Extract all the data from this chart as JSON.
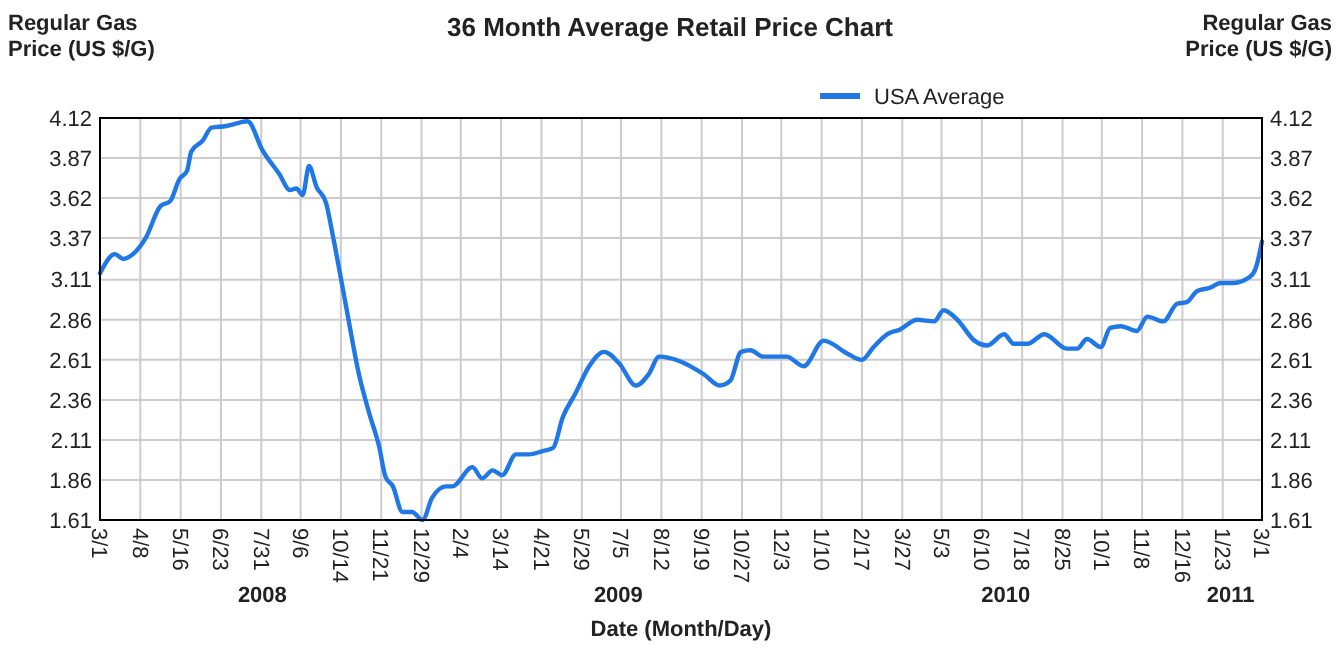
{
  "chart_data": {
    "type": "line",
    "title": "36 Month Average Retail Price Chart",
    "xlabel": "Date (Month/Day)",
    "ylabel": "Regular Gas Price (US $/G)",
    "y2label": "Regular Gas Price (US $/G)",
    "x": [
      "2008-03-01",
      "2008-03-15",
      "2008-03-23",
      "2008-04-01",
      "2008-04-13",
      "2008-04-27",
      "2008-05-06",
      "2008-05-15",
      "2008-05-22",
      "2008-05-26",
      "2008-06-06",
      "2008-06-14",
      "2008-06-28",
      "2008-07-10",
      "2008-07-18",
      "2008-08-01",
      "2008-08-17",
      "2008-08-27",
      "2008-09-02",
      "2008-09-08",
      "2008-09-14",
      "2008-09-21",
      "2008-09-30",
      "2008-10-06",
      "2008-10-19",
      "2008-10-31",
      "2008-11-10",
      "2008-11-19",
      "2008-11-25",
      "2008-12-02",
      "2008-12-11",
      "2008-12-20",
      "2008-12-30",
      "2009-01-08",
      "2009-01-21",
      "2009-01-27",
      "2009-02-15",
      "2009-02-24",
      "2009-03-06",
      "2009-03-15",
      "2009-03-28",
      "2009-04-09",
      "2009-04-22",
      "2009-05-02",
      "2009-05-11",
      "2009-05-23",
      "2009-06-05",
      "2009-06-19",
      "2009-07-03",
      "2009-07-19",
      "2009-07-31",
      "2009-08-10",
      "2009-08-30",
      "2009-09-21",
      "2009-10-06",
      "2009-10-16",
      "2009-10-26",
      "2009-11-04",
      "2009-11-16",
      "2009-12-08",
      "2009-12-24",
      "2010-01-12",
      "2010-02-03",
      "2010-02-17",
      "2010-02-28",
      "2010-03-13",
      "2010-03-25",
      "2010-04-10",
      "2010-04-26",
      "2010-05-05",
      "2010-05-18",
      "2010-06-03",
      "2010-06-15",
      "2010-07-01",
      "2010-07-10",
      "2010-07-23",
      "2010-08-08",
      "2010-08-29",
      "2010-09-08",
      "2010-09-17",
      "2010-09-30",
      "2010-10-09",
      "2010-10-19",
      "2010-11-03",
      "2010-11-13",
      "2010-11-28",
      "2010-12-11",
      "2010-12-20",
      "2010-12-30",
      "2011-01-11",
      "2011-01-21",
      "2011-02-02",
      "2011-02-18",
      "2011-02-23",
      "2011-03-01"
    ],
    "series": [
      {
        "name": "USA Average",
        "color": "#1f78e6",
        "values": [
          3.15,
          3.27,
          3.24,
          3.27,
          3.37,
          3.57,
          3.6,
          3.74,
          3.79,
          3.91,
          3.98,
          4.06,
          4.07,
          4.09,
          4.1,
          3.92,
          3.77,
          3.67,
          3.68,
          3.64,
          3.82,
          3.69,
          3.59,
          3.4,
          2.94,
          2.52,
          2.27,
          2.07,
          1.88,
          1.82,
          1.66,
          1.66,
          1.61,
          1.75,
          1.82,
          1.82,
          1.94,
          1.87,
          1.92,
          1.89,
          2.02,
          2.02,
          2.04,
          2.06,
          2.25,
          2.4,
          2.57,
          2.66,
          2.59,
          2.45,
          2.52,
          2.63,
          2.6,
          2.52,
          2.45,
          2.48,
          2.66,
          2.67,
          2.63,
          2.63,
          2.57,
          2.73,
          2.65,
          2.61,
          2.69,
          2.77,
          2.8,
          2.86,
          2.85,
          2.92,
          2.86,
          2.73,
          2.7,
          2.77,
          2.71,
          2.71,
          2.77,
          2.68,
          2.68,
          2.74,
          2.69,
          2.81,
          2.82,
          2.79,
          2.88,
          2.85,
          2.96,
          2.97,
          3.04,
          3.06,
          3.09,
          3.09,
          3.13,
          3.18,
          3.35
        ]
      }
    ],
    "xlim": [
      "2008-03-01",
      "2011-03-01"
    ],
    "xticks": [
      {
        "value": "2008-03-01",
        "label": "3/1"
      },
      {
        "value": "2008-04-08",
        "label": "4/8"
      },
      {
        "value": "2008-05-16",
        "label": "5/16"
      },
      {
        "value": "2008-06-23",
        "label": "6/23"
      },
      {
        "value": "2008-07-31",
        "label": "7/31"
      },
      {
        "value": "2008-09-06",
        "label": "9/6"
      },
      {
        "value": "2008-10-14",
        "label": "10/14"
      },
      {
        "value": "2008-11-21",
        "label": "11/21"
      },
      {
        "value": "2008-12-29",
        "label": "12/29"
      },
      {
        "value": "2009-02-04",
        "label": "2/4"
      },
      {
        "value": "2009-03-14",
        "label": "3/14"
      },
      {
        "value": "2009-04-21",
        "label": "4/21"
      },
      {
        "value": "2009-05-29",
        "label": "5/29"
      },
      {
        "value": "2009-07-05",
        "label": "7/5"
      },
      {
        "value": "2009-08-12",
        "label": "8/12"
      },
      {
        "value": "2009-09-19",
        "label": "9/19"
      },
      {
        "value": "2009-10-27",
        "label": "10/27"
      },
      {
        "value": "2009-12-03",
        "label": "12/3"
      },
      {
        "value": "2010-01-10",
        "label": "1/10"
      },
      {
        "value": "2010-02-17",
        "label": "2/17"
      },
      {
        "value": "2010-03-27",
        "label": "3/27"
      },
      {
        "value": "2010-05-03",
        "label": "5/3"
      },
      {
        "value": "2010-06-10",
        "label": "6/10"
      },
      {
        "value": "2010-07-18",
        "label": "7/18"
      },
      {
        "value": "2010-08-25",
        "label": "8/25"
      },
      {
        "value": "2010-10-01",
        "label": "10/1"
      },
      {
        "value": "2010-11-08",
        "label": "11/8"
      },
      {
        "value": "2010-12-16",
        "label": "12/16"
      },
      {
        "value": "2011-01-23",
        "label": "1/23"
      },
      {
        "value": "2011-03-01",
        "label": "3/1"
      }
    ],
    "ylim": [
      1.61,
      4.12
    ],
    "yticks": [
      1.61,
      1.86,
      2.11,
      2.36,
      2.61,
      2.86,
      3.11,
      3.37,
      3.62,
      3.87,
      4.12
    ],
    "y2lim": [
      1.61,
      4.12
    ],
    "y2ticks": [
      1.61,
      1.86,
      2.11,
      2.36,
      2.61,
      2.86,
      3.11,
      3.37,
      3.62,
      3.87,
      4.12
    ],
    "annotations": [
      "2008",
      "2009",
      "2010",
      "2011"
    ],
    "grid": true,
    "legend": "top right",
    "marker": "none",
    "line_style": "solid"
  }
}
